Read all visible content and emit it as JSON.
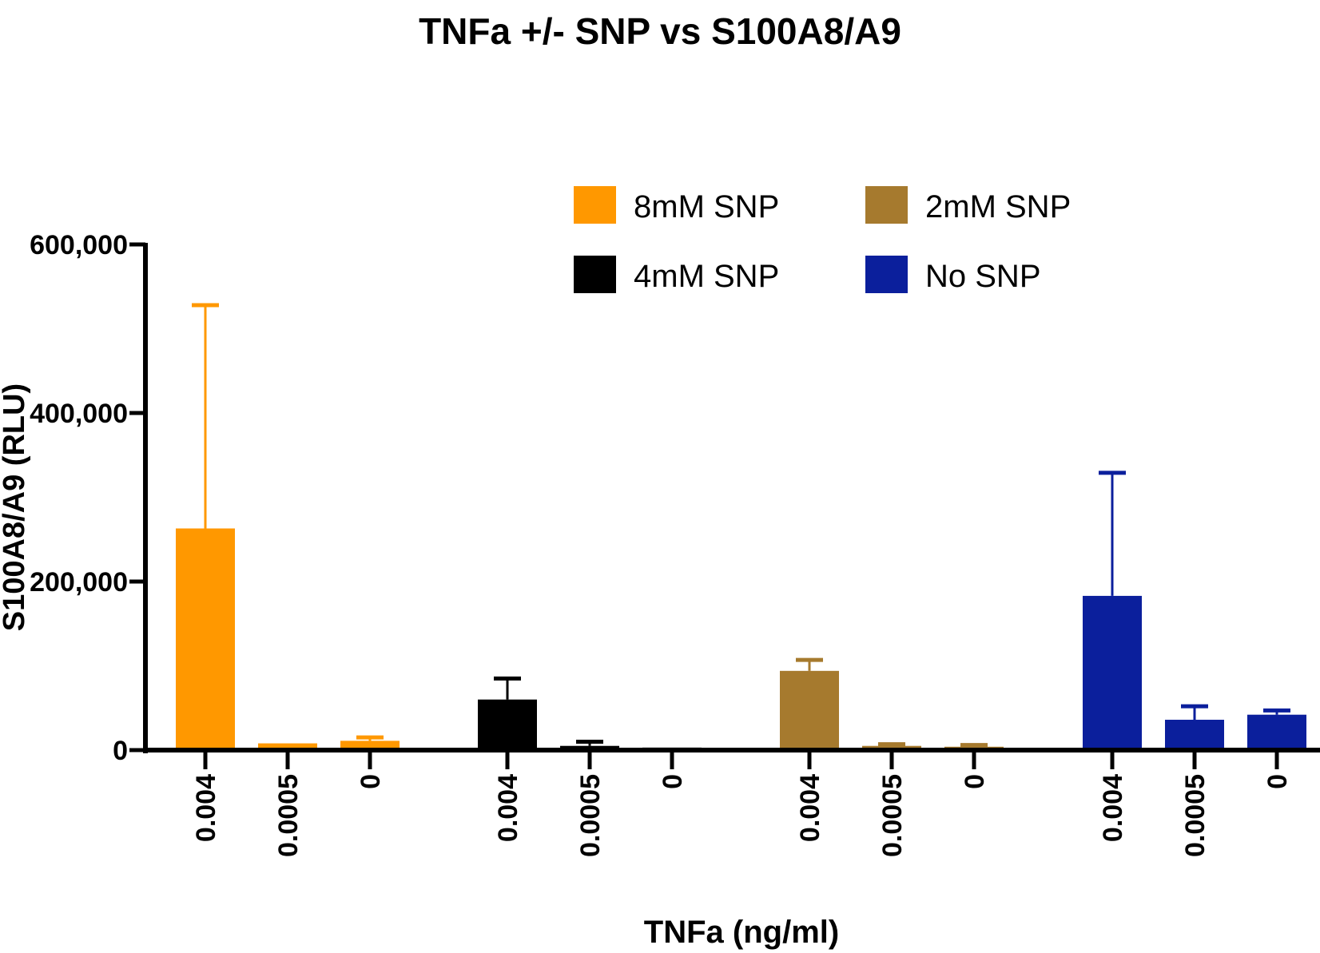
{
  "chart_data": {
    "type": "bar",
    "title": "TNFa +/- SNP vs S100A8/A9",
    "xlabel": "TNFa (ng/ml)",
    "ylabel": "S100A8/A9 (RLU)",
    "ylim": [
      0,
      600000
    ],
    "yticks": [
      0,
      200000,
      400000,
      600000
    ],
    "ytick_labels": [
      "0",
      "200,000",
      "400,000",
      "600,000"
    ],
    "categories": [
      "0.004",
      "0.0005",
      "0"
    ],
    "legend_position": "top-right",
    "series": [
      {
        "name": "8mM SNP",
        "color": "#ff9800",
        "values": [
          263000,
          8000,
          11000
        ],
        "errors": [
          265000,
          0,
          4000
        ]
      },
      {
        "name": "4mM SNP",
        "color": "#000000",
        "values": [
          60000,
          5000,
          3000
        ],
        "errors": [
          25000,
          5000,
          0
        ]
      },
      {
        "name": "2mM SNP",
        "color": "#a67a2e",
        "values": [
          94000,
          5000,
          4000
        ],
        "errors": [
          13000,
          2000,
          2000
        ]
      },
      {
        "name": "No SNP",
        "color": "#0b1f9c",
        "values": [
          183000,
          36000,
          42000
        ],
        "errors": [
          146000,
          16000,
          5000
        ]
      }
    ]
  }
}
